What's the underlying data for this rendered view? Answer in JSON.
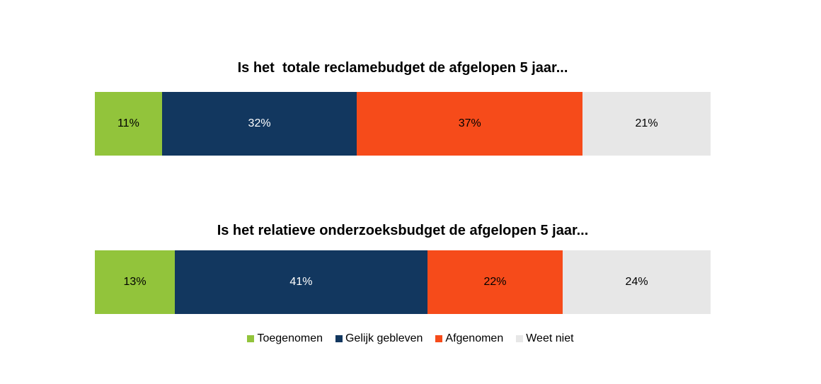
{
  "chart_data": {
    "type": "bar",
    "orientation": "horizontal-stacked-100",
    "legend_position": "bottom",
    "grid": false,
    "series_names": [
      "Toegenomen",
      "Gelijk gebleven",
      "Afgenomen",
      "Weet niet"
    ],
    "colors": [
      "#92C43B",
      "#12375F",
      "#F64B1A",
      "#E7E7E7"
    ],
    "label_colors": [
      "#000000",
      "#FFFFFF",
      "#000000",
      "#000000"
    ],
    "charts": [
      {
        "title": "Is het  totale reclamebudget de afgelopen 5 jaar...",
        "values": [
          11,
          32,
          37,
          21
        ],
        "labels": [
          "11%",
          "32%",
          "37%",
          "21%"
        ]
      },
      {
        "title": "Is het relatieve onderzoeksbudget de afgelopen 5 jaar...",
        "values": [
          13,
          41,
          22,
          24
        ],
        "labels": [
          "13%",
          "41%",
          "22%",
          "24%"
        ]
      }
    ]
  }
}
